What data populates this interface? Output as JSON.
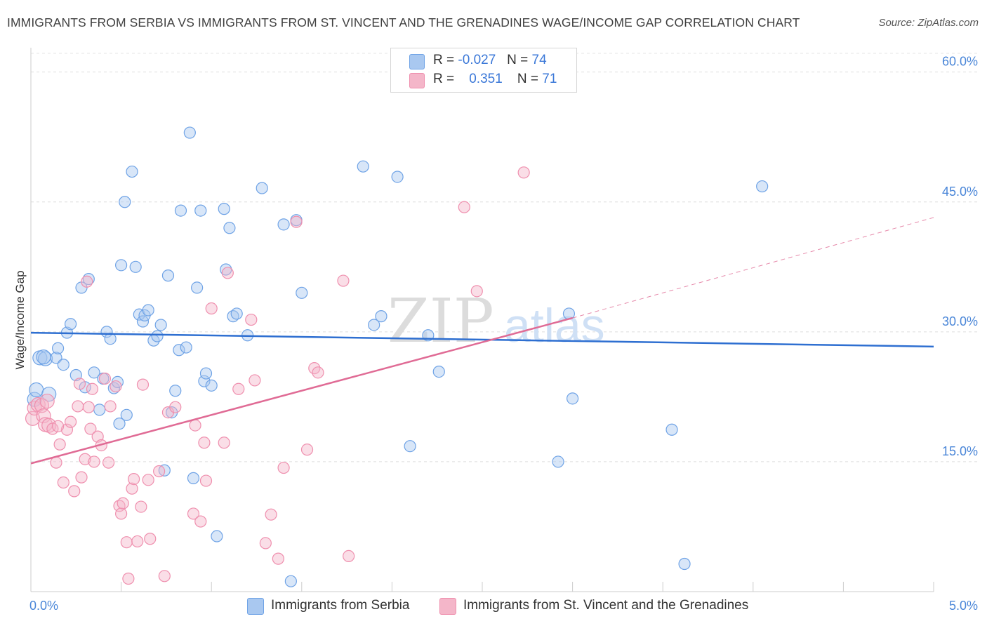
{
  "title": "IMMIGRANTS FROM SERBIA VS IMMIGRANTS FROM ST. VINCENT AND THE GRENADINES WAGE/INCOME GAP CORRELATION CHART",
  "source": "Source: ZipAtlas.com",
  "watermark": {
    "zip": "ZIP",
    "atlas": "atlas"
  },
  "legend": [
    {
      "r_label": "R =",
      "r_value": "-0.027",
      "n_label": "N =",
      "n_value": "74",
      "color": "#a9c8f0"
    },
    {
      "r_label": "R =",
      "r_value": "0.351",
      "n_label": "N =",
      "n_value": "71",
      "color": "#f4b6c9"
    }
  ],
  "chart_data": {
    "type": "scatter",
    "title": "IMMIGRANTS FROM SERBIA VS IMMIGRANTS FROM ST. VINCENT AND THE GRENADINES WAGE/INCOME GAP CORRELATION CHART",
    "xlabel": "",
    "ylabel": "Wage/Income Gap",
    "xlim": [
      0,
      5
    ],
    "ylim": [
      0,
      62
    ],
    "x_tick_labels": [
      "0.0%",
      "5.0%"
    ],
    "y_tick_labels": [
      "15.0%",
      "30.0%",
      "45.0%",
      "60.0%"
    ],
    "y_ticks": [
      15,
      30,
      45,
      60
    ],
    "grid": true,
    "legend_position": "bottom",
    "series": [
      {
        "name": "Immigrants from Serbia",
        "color": "#6fa3e6",
        "fill": "#a9c8f0",
        "trend_color": "#2e6fd1",
        "trend": {
          "x": [
            0,
            5
          ],
          "y": [
            29.9,
            28.3
          ]
        },
        "points": [
          [
            0.02,
            22.2
          ],
          [
            0.03,
            23.3
          ],
          [
            0.05,
            27.0
          ],
          [
            0.08,
            26.9
          ],
          [
            0.1,
            22.8
          ],
          [
            0.14,
            27.0
          ],
          [
            0.15,
            28.1
          ],
          [
            0.18,
            26.2
          ],
          [
            0.2,
            29.9
          ],
          [
            0.22,
            30.9
          ],
          [
            0.25,
            25.0
          ],
          [
            0.28,
            35.1
          ],
          [
            0.3,
            23.6
          ],
          [
            0.32,
            36.1
          ],
          [
            0.35,
            25.3
          ],
          [
            0.38,
            21.0
          ],
          [
            0.4,
            24.6
          ],
          [
            0.42,
            30.0
          ],
          [
            0.44,
            29.2
          ],
          [
            0.46,
            23.5
          ],
          [
            0.48,
            24.2
          ],
          [
            0.49,
            19.4
          ],
          [
            0.5,
            37.7
          ],
          [
            0.52,
            45.0
          ],
          [
            0.53,
            20.4
          ],
          [
            0.56,
            48.5
          ],
          [
            0.58,
            37.5
          ],
          [
            0.6,
            32.0
          ],
          [
            0.62,
            31.2
          ],
          [
            0.63,
            31.9
          ],
          [
            0.65,
            32.5
          ],
          [
            0.68,
            29.0
          ],
          [
            0.7,
            29.5
          ],
          [
            0.72,
            30.8
          ],
          [
            0.74,
            14.0
          ],
          [
            0.76,
            36.5
          ],
          [
            0.78,
            20.7
          ],
          [
            0.8,
            23.2
          ],
          [
            0.82,
            27.9
          ],
          [
            0.83,
            44.0
          ],
          [
            0.86,
            28.2
          ],
          [
            0.88,
            53.0
          ],
          [
            0.9,
            13.1
          ],
          [
            0.92,
            35.1
          ],
          [
            0.94,
            44.0
          ],
          [
            0.96,
            24.3
          ],
          [
            0.97,
            25.2
          ],
          [
            1.0,
            23.8
          ],
          [
            1.03,
            6.4
          ],
          [
            1.07,
            44.2
          ],
          [
            1.08,
            37.2
          ],
          [
            1.1,
            42.0
          ],
          [
            1.12,
            31.8
          ],
          [
            1.14,
            32.1
          ],
          [
            1.2,
            29.6
          ],
          [
            1.28,
            46.6
          ],
          [
            1.4,
            42.4
          ],
          [
            1.44,
            1.2
          ],
          [
            1.47,
            42.9
          ],
          [
            1.5,
            34.5
          ],
          [
            1.84,
            49.1
          ],
          [
            1.9,
            30.8
          ],
          [
            1.94,
            31.8
          ],
          [
            2.03,
            47.9
          ],
          [
            2.1,
            16.8
          ],
          [
            2.2,
            29.6
          ],
          [
            2.26,
            25.4
          ],
          [
            2.92,
            15.0
          ],
          [
            2.98,
            32.1
          ],
          [
            3.0,
            22.3
          ],
          [
            3.55,
            18.7
          ],
          [
            3.62,
            3.2
          ],
          [
            4.05,
            46.8
          ],
          [
            0.07,
            27.1
          ]
        ]
      },
      {
        "name": "Immigrants from St. Vincent and the Grenadines",
        "color": "#ef8fae",
        "fill": "#f4b6c9",
        "trend_color": "#e06b95",
        "trend": {
          "x": [
            0,
            3.0
          ],
          "y": [
            14.8,
            31.6
          ]
        },
        "trend_ext": {
          "x": [
            3.0,
            5.0
          ],
          "y": [
            31.6,
            43.2
          ]
        },
        "points": [
          [
            0.01,
            20.0
          ],
          [
            0.02,
            21.2
          ],
          [
            0.04,
            21.6
          ],
          [
            0.06,
            21.5
          ],
          [
            0.07,
            20.3
          ],
          [
            0.08,
            19.3
          ],
          [
            0.09,
            22.0
          ],
          [
            0.1,
            19.2
          ],
          [
            0.12,
            18.8
          ],
          [
            0.14,
            14.9
          ],
          [
            0.16,
            17.0
          ],
          [
            0.18,
            12.6
          ],
          [
            0.2,
            18.7
          ],
          [
            0.22,
            19.6
          ],
          [
            0.24,
            11.6
          ],
          [
            0.26,
            21.4
          ],
          [
            0.27,
            24.0
          ],
          [
            0.28,
            13.2
          ],
          [
            0.3,
            15.3
          ],
          [
            0.31,
            35.8
          ],
          [
            0.32,
            21.3
          ],
          [
            0.33,
            18.8
          ],
          [
            0.34,
            23.4
          ],
          [
            0.35,
            15.0
          ],
          [
            0.37,
            17.9
          ],
          [
            0.39,
            16.9
          ],
          [
            0.41,
            24.6
          ],
          [
            0.43,
            14.9
          ],
          [
            0.44,
            21.4
          ],
          [
            0.47,
            23.7
          ],
          [
            0.49,
            9.9
          ],
          [
            0.5,
            9.0
          ],
          [
            0.51,
            10.2
          ],
          [
            0.53,
            5.7
          ],
          [
            0.54,
            1.5
          ],
          [
            0.56,
            11.9
          ],
          [
            0.57,
            13.0
          ],
          [
            0.59,
            5.8
          ],
          [
            0.61,
            9.8
          ],
          [
            0.62,
            23.9
          ],
          [
            0.65,
            12.9
          ],
          [
            0.66,
            6.1
          ],
          [
            0.71,
            13.9
          ],
          [
            0.74,
            1.8
          ],
          [
            0.76,
            20.7
          ],
          [
            0.8,
            21.3
          ],
          [
            0.9,
            9.0
          ],
          [
            0.91,
            19.2
          ],
          [
            0.94,
            8.1
          ],
          [
            0.96,
            17.2
          ],
          [
            0.97,
            12.8
          ],
          [
            1.0,
            32.7
          ],
          [
            1.07,
            17.2
          ],
          [
            1.09,
            36.8
          ],
          [
            1.15,
            23.4
          ],
          [
            1.22,
            31.4
          ],
          [
            1.24,
            24.4
          ],
          [
            1.3,
            5.6
          ],
          [
            1.33,
            8.9
          ],
          [
            1.37,
            3.8
          ],
          [
            1.4,
            14.3
          ],
          [
            1.47,
            42.7
          ],
          [
            1.53,
            16.4
          ],
          [
            1.57,
            25.8
          ],
          [
            1.59,
            25.3
          ],
          [
            1.73,
            35.9
          ],
          [
            1.76,
            4.1
          ],
          [
            2.4,
            44.4
          ],
          [
            2.47,
            34.7
          ],
          [
            2.73,
            48.4
          ],
          [
            0.15,
            19.1
          ]
        ]
      }
    ]
  }
}
